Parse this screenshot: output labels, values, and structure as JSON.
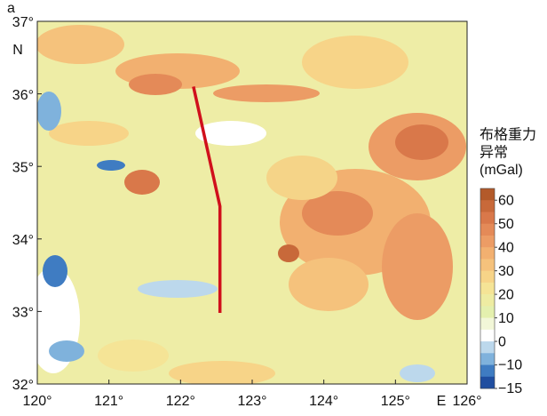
{
  "map": {
    "panel_label": "a",
    "xlim": [
      120,
      126
    ],
    "ylim": [
      32,
      37
    ],
    "xticks": [
      {
        "value": 120,
        "label": "120°"
      },
      {
        "value": 121,
        "label": "121°"
      },
      {
        "value": 122,
        "label": "122°"
      },
      {
        "value": 123,
        "label": "123°"
      },
      {
        "value": 124,
        "label": "124°"
      },
      {
        "value": 125,
        "label": "125°"
      },
      {
        "value": 126,
        "label": "126°"
      }
    ],
    "yticks": [
      {
        "value": 37,
        "label": "37°"
      },
      {
        "value": 36,
        "label": "36°"
      },
      {
        "value": 35,
        "label": "35°"
      },
      {
        "value": 34,
        "label": "34°"
      },
      {
        "value": 33,
        "label": "33°"
      },
      {
        "value": 32,
        "label": "32°"
      }
    ],
    "x_hemisphere": "E",
    "y_hemisphere": "N",
    "profile": {
      "lon": [
        122.18,
        122.55,
        122.55
      ],
      "lat": [
        36.1,
        34.45,
        32.98
      ],
      "color": "#d0101c"
    }
  },
  "colorbar": {
    "title_lines": [
      "布格重力",
      "异常",
      "(mGal)"
    ],
    "ticks": [
      {
        "value": 60,
        "label": "60"
      },
      {
        "value": 50,
        "label": "50"
      },
      {
        "value": 40,
        "label": "40"
      },
      {
        "value": 30,
        "label": "30"
      },
      {
        "value": 20,
        "label": "20"
      },
      {
        "value": 10,
        "label": "10"
      },
      {
        "value": 0,
        "label": "0"
      },
      {
        "value": -10,
        "label": "−10"
      },
      {
        "value": -15,
        "label": "−15"
      }
    ],
    "colors": [
      "#b35a2a",
      "#c8693a",
      "#d9784a",
      "#e48a58",
      "#ec9c65",
      "#f2b070",
      "#f5c27c",
      "#f7d488",
      "#f5e496",
      "#eeeca2",
      "#e4f0ae",
      "#f2f7d8",
      "#ffffff",
      "#bcd8ec",
      "#7fb2dc",
      "#3f7cc2",
      "#1f4ea0"
    ]
  }
}
